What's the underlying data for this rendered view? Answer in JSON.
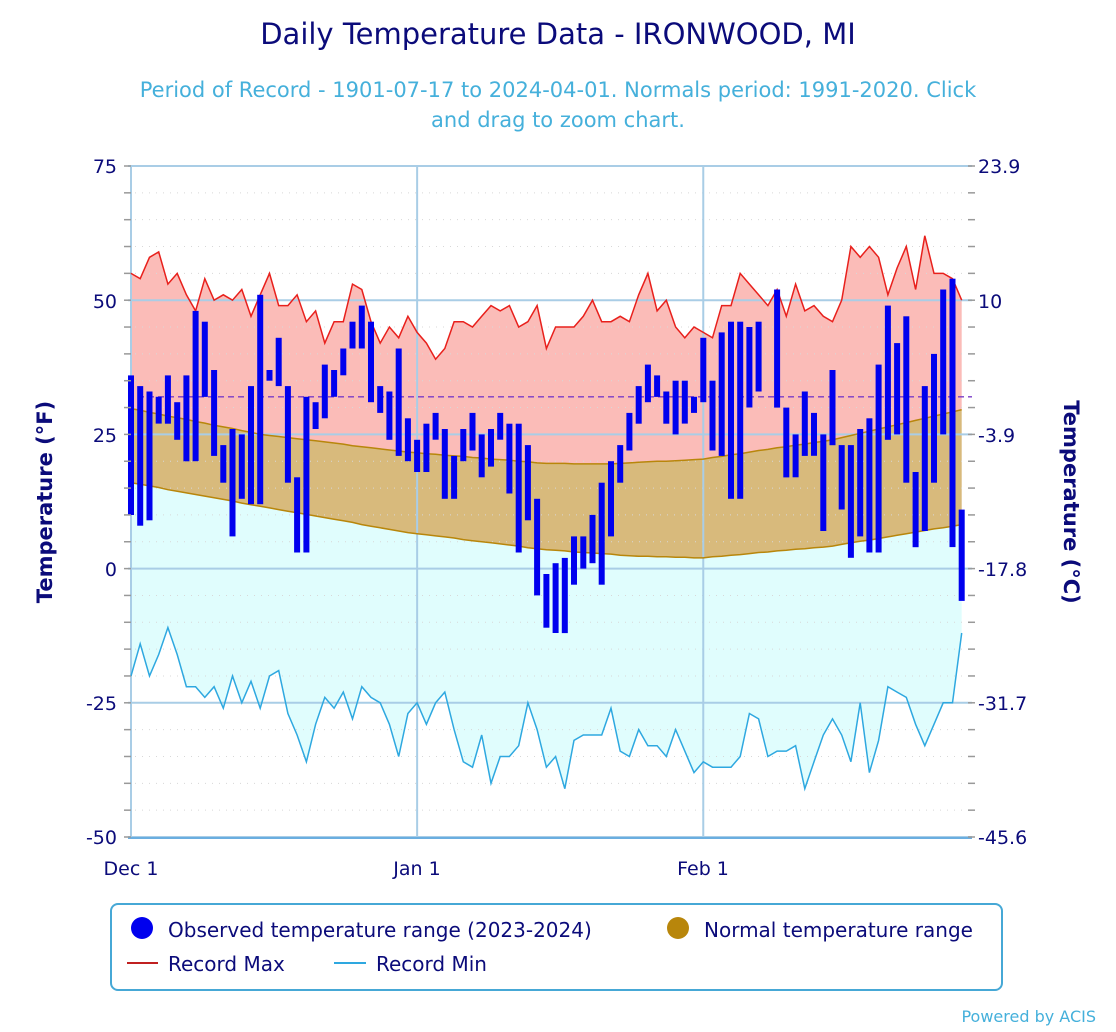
{
  "chart_data": {
    "type": "bar",
    "title": "Daily Temperature Data - IRONWOOD, MI",
    "subtitle_line1": "Period of Record - 1901-07-17 to 2024-04-01. Normals period: 1991-2020. Click",
    "subtitle_line2": "and drag to zoom chart.",
    "ylabel": "Temperature (°F)",
    "ylabel_right": "Temperature (°C)",
    "ylim": [
      -50,
      75
    ],
    "yticks": [
      "75",
      "50",
      "25",
      "0",
      "-25",
      "-50"
    ],
    "yticks_right": [
      "23.9",
      "10",
      "-3.9",
      "-17.8",
      "-31.7",
      "-45.6"
    ],
    "xticks": [
      "Dec 1",
      "Jan 1",
      "Feb 1"
    ],
    "freezing_line": 32,
    "grid": true,
    "legend_placement": "bottom",
    "legend": {
      "observed": "Observed temperature range (2023-2024)",
      "normal": "Normal temperature range",
      "record_max": "Record Max",
      "record_min": "Record Min"
    },
    "colors": {
      "observed": "#0000ee",
      "normal": "#b8860b",
      "normal_fill": "#d8ba7c",
      "record_max": "#e8201c",
      "record_max_fill": "#fbbcb8",
      "record_min": "#2ea8e0",
      "record_min_fill": "#e0fdfd",
      "freezing": "#7a3cc8"
    },
    "dates": [
      "2023-12-01",
      "2023-12-02",
      "2023-12-03",
      "2023-12-04",
      "2023-12-05",
      "2023-12-06",
      "2023-12-07",
      "2023-12-08",
      "2023-12-09",
      "2023-12-10",
      "2023-12-11",
      "2023-12-12",
      "2023-12-13",
      "2023-12-14",
      "2023-12-15",
      "2023-12-16",
      "2023-12-17",
      "2023-12-18",
      "2023-12-19",
      "2023-12-20",
      "2023-12-21",
      "2023-12-22",
      "2023-12-23",
      "2023-12-24",
      "2023-12-25",
      "2023-12-26",
      "2023-12-27",
      "2023-12-28",
      "2023-12-29",
      "2023-12-30",
      "2023-12-31",
      "2024-01-01",
      "2024-01-02",
      "2024-01-03",
      "2024-01-04",
      "2024-01-05",
      "2024-01-06",
      "2024-01-07",
      "2024-01-08",
      "2024-01-09",
      "2024-01-10",
      "2024-01-11",
      "2024-01-12",
      "2024-01-13",
      "2024-01-14",
      "2024-01-15",
      "2024-01-16",
      "2024-01-17",
      "2024-01-18",
      "2024-01-19",
      "2024-01-20",
      "2024-01-21",
      "2024-01-22",
      "2024-01-23",
      "2024-01-24",
      "2024-01-25",
      "2024-01-26",
      "2024-01-27",
      "2024-01-28",
      "2024-01-29",
      "2024-01-30",
      "2024-01-31",
      "2024-02-01",
      "2024-02-02",
      "2024-02-03",
      "2024-02-04",
      "2024-02-05",
      "2024-02-06",
      "2024-02-07",
      "2024-02-08",
      "2024-02-09",
      "2024-02-10",
      "2024-02-11",
      "2024-02-12",
      "2024-02-13",
      "2024-02-14",
      "2024-02-15",
      "2024-02-16",
      "2024-02-17",
      "2024-02-18",
      "2024-02-19",
      "2024-02-20",
      "2024-02-21",
      "2024-02-22",
      "2024-02-23",
      "2024-02-24",
      "2024-02-25",
      "2024-02-26",
      "2024-02-27",
      "2024-02-28",
      "2024-02-29"
    ],
    "observed_high": [
      36,
      34,
      33,
      32,
      36,
      31,
      36,
      48,
      46,
      37,
      23,
      26,
      25,
      34,
      51,
      37,
      43,
      34,
      17,
      32,
      31,
      38,
      37,
      41,
      46,
      49,
      46,
      34,
      33,
      41,
      28,
      24,
      27,
      29,
      26,
      21,
      26,
      29,
      25,
      26,
      29,
      27,
      27,
      23,
      13,
      -1,
      1,
      2,
      6,
      6,
      10,
      16,
      20,
      23,
      29,
      34,
      38,
      36,
      33,
      35,
      35,
      32,
      43,
      35,
      44,
      46,
      46,
      45,
      46,
      null,
      52,
      30,
      25,
      33,
      29,
      25,
      37,
      23,
      23,
      26,
      28,
      38,
      49,
      42,
      47,
      18,
      34,
      40,
      52,
      54,
      11
    ],
    "observed_low": [
      10,
      8,
      9,
      27,
      27,
      24,
      20,
      20,
      32,
      21,
      16,
      6,
      13,
      12,
      12,
      35,
      34,
      16,
      3,
      3,
      26,
      28,
      32,
      36,
      41,
      41,
      31,
      29,
      24,
      21,
      20,
      18,
      18,
      24,
      13,
      13,
      20,
      22,
      17,
      19,
      24,
      14,
      3,
      9,
      -5,
      -11,
      -12,
      -12,
      -3,
      0,
      1,
      -3,
      6,
      16,
      22,
      27,
      31,
      32,
      27,
      25,
      27,
      29,
      31,
      22,
      21,
      13,
      13,
      30,
      33,
      null,
      30,
      17,
      17,
      21,
      21,
      7,
      23,
      11,
      2,
      6,
      3,
      3,
      24,
      25,
      16,
      4,
      7,
      16,
      25,
      4,
      -6
    ],
    "normal_high": [
      29.8,
      29.5,
      29.1,
      28.8,
      28.4,
      28.1,
      27.8,
      27.4,
      27.1,
      26.7,
      26.4,
      26.1,
      25.7,
      25.4,
      25.0,
      24.8,
      24.6,
      24.4,
      24.2,
      24.0,
      23.8,
      23.6,
      23.4,
      23.2,
      22.9,
      22.7,
      22.5,
      22.3,
      22.1,
      21.9,
      21.7,
      21.6,
      21.4,
      21.3,
      21.1,
      21.0,
      20.9,
      20.7,
      20.6,
      20.4,
      20.3,
      20.2,
      20.0,
      19.9,
      19.7,
      19.6,
      19.6,
      19.6,
      19.5,
      19.5,
      19.5,
      19.5,
      19.5,
      19.6,
      19.7,
      19.8,
      19.9,
      20.0,
      20.0,
      20.1,
      20.2,
      20.3,
      20.4,
      20.7,
      20.9,
      21.2,
      21.4,
      21.7,
      22.0,
      22.2,
      22.5,
      22.7,
      23.0,
      23.2,
      23.5,
      23.7,
      24.0,
      24.4,
      24.8,
      25.2,
      25.6,
      26.0,
      26.4,
      26.8,
      27.2,
      27.6,
      28.0,
      28.4,
      28.8,
      29.2,
      29.6
    ],
    "normal_low": [
      16.0,
      15.7,
      15.4,
      15.1,
      14.7,
      14.4,
      14.1,
      13.8,
      13.5,
      13.2,
      12.9,
      12.6,
      12.2,
      11.9,
      11.6,
      11.3,
      11.0,
      10.7,
      10.4,
      10.1,
      9.8,
      9.5,
      9.2,
      8.9,
      8.6,
      8.2,
      7.9,
      7.6,
      7.3,
      7.0,
      6.7,
      6.5,
      6.3,
      6.1,
      5.9,
      5.7,
      5.4,
      5.2,
      5.0,
      4.8,
      4.6,
      4.4,
      4.2,
      3.9,
      3.7,
      3.5,
      3.4,
      3.3,
      3.1,
      3.0,
      2.9,
      2.8,
      2.7,
      2.5,
      2.4,
      2.3,
      2.3,
      2.2,
      2.2,
      2.1,
      2.1,
      2.0,
      2.0,
      2.2,
      2.3,
      2.5,
      2.6,
      2.8,
      3.0,
      3.1,
      3.3,
      3.4,
      3.6,
      3.7,
      3.9,
      4.0,
      4.2,
      4.5,
      4.8,
      5.1,
      5.3,
      5.6,
      5.9,
      6.2,
      6.5,
      6.8,
      7.1,
      7.4,
      7.6,
      7.9,
      8.2
    ],
    "record_max": [
      55,
      54,
      58,
      59,
      53,
      55,
      51,
      48,
      54,
      50,
      51,
      50,
      52,
      47,
      51,
      55,
      49,
      49,
      51,
      46,
      48,
      42,
      46,
      46,
      53,
      52,
      46,
      42,
      45,
      43,
      47,
      44,
      42,
      39,
      41,
      46,
      46,
      45,
      47,
      49,
      48,
      49,
      45,
      46,
      49,
      41,
      45,
      45,
      45,
      47,
      50,
      46,
      46,
      47,
      46,
      51,
      55,
      48,
      50,
      45,
      43,
      45,
      44,
      43,
      49,
      49,
      55,
      53,
      51,
      49,
      52,
      47,
      53,
      48,
      49,
      47,
      46,
      50,
      60,
      58,
      60,
      58,
      51,
      56,
      60,
      52,
      62,
      55,
      55,
      54,
      50
    ],
    "record_min": [
      -20,
      -14,
      -20,
      -16,
      -11,
      -16,
      -22,
      -22,
      -24,
      -22,
      -26,
      -20,
      -25,
      -21,
      -26,
      -20,
      -19,
      -27,
      -31,
      -36,
      -29,
      -24,
      -26,
      -23,
      -28,
      -22,
      -24,
      -25,
      -29,
      -35,
      -27,
      -25,
      -29,
      -25,
      -23,
      -30,
      -36,
      -37,
      -31,
      -40,
      -35,
      -35,
      -33,
      -25,
      -30,
      -37,
      -35,
      -41,
      -32,
      -31,
      -31,
      -31,
      -26,
      -34,
      -35,
      -30,
      -33,
      -33,
      -35,
      -30,
      -34,
      -38,
      -36,
      -37,
      -37,
      -37,
      -35,
      -27,
      -28,
      -35,
      -34,
      -34,
      -33,
      -41,
      -36,
      -31,
      -28,
      -31,
      -36,
      -25,
      -38,
      -32,
      -22,
      -23,
      -24,
      -29,
      -33,
      -29,
      -25,
      -25,
      -12
    ]
  },
  "footer": {
    "credit": "Powered by ACIS"
  }
}
